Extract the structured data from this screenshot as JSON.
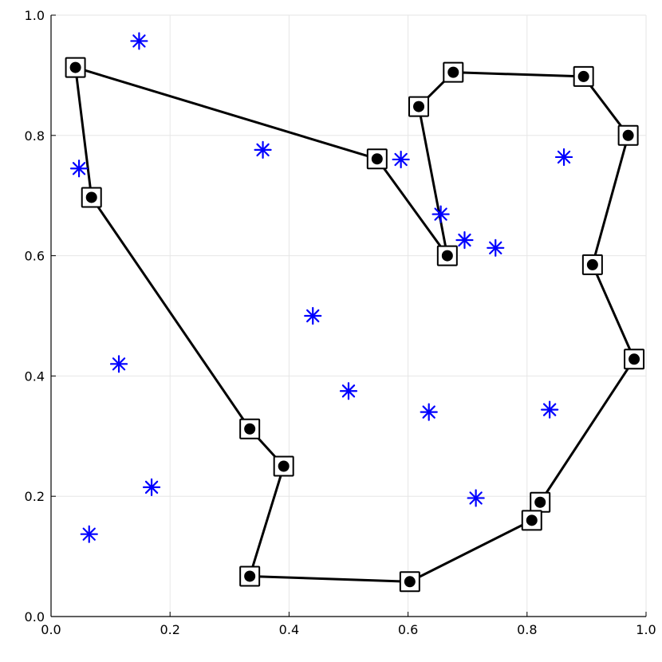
{
  "chart_data": {
    "type": "scatter",
    "title": "",
    "xlabel": "",
    "ylabel": "",
    "xlim": [
      0.0,
      1.0
    ],
    "ylim": [
      0.0,
      1.0
    ],
    "grid": true,
    "legend": "none",
    "x_ticks": [
      {
        "value": 0.0,
        "label": "0.0"
      },
      {
        "value": 0.2,
        "label": "0.2"
      },
      {
        "value": 0.4,
        "label": "0.4"
      },
      {
        "value": 0.6,
        "label": "0.6"
      },
      {
        "value": 0.8,
        "label": "0.8"
      },
      {
        "value": 1.0,
        "label": "1.0"
      }
    ],
    "y_ticks": [
      {
        "value": 0.0,
        "label": "0.0"
      },
      {
        "value": 0.2,
        "label": "0.2"
      },
      {
        "value": 0.4,
        "label": "0.4"
      },
      {
        "value": 0.6,
        "label": "0.6"
      },
      {
        "value": 0.8,
        "label": "0.8"
      },
      {
        "value": 1.0,
        "label": "1.0"
      }
    ],
    "series": [
      {
        "marker": "asterisk",
        "color": "#0000ff",
        "points": [
          {
            "x": 0.148,
            "y": 0.957
          },
          {
            "x": 0.047,
            "y": 0.745
          },
          {
            "x": 0.356,
            "y": 0.776
          },
          {
            "x": 0.588,
            "y": 0.76
          },
          {
            "x": 0.862,
            "y": 0.764
          },
          {
            "x": 0.655,
            "y": 0.669
          },
          {
            "x": 0.695,
            "y": 0.626
          },
          {
            "x": 0.747,
            "y": 0.613
          },
          {
            "x": 0.44,
            "y": 0.5
          },
          {
            "x": 0.114,
            "y": 0.42
          },
          {
            "x": 0.5,
            "y": 0.375
          },
          {
            "x": 0.635,
            "y": 0.34
          },
          {
            "x": 0.838,
            "y": 0.344
          },
          {
            "x": 0.169,
            "y": 0.215
          },
          {
            "x": 0.714,
            "y": 0.197
          },
          {
            "x": 0.064,
            "y": 0.137
          }
        ]
      },
      {
        "marker": "circle",
        "color": "#000000",
        "points": [
          {
            "x": 0.041,
            "y": 0.913
          },
          {
            "x": 0.548,
            "y": 0.761
          },
          {
            "x": 0.666,
            "y": 0.6
          },
          {
            "x": 0.618,
            "y": 0.848
          },
          {
            "x": 0.676,
            "y": 0.905
          },
          {
            "x": 0.895,
            "y": 0.898
          },
          {
            "x": 0.97,
            "y": 0.8
          },
          {
            "x": 0.91,
            "y": 0.585
          },
          {
            "x": 0.98,
            "y": 0.428
          },
          {
            "x": 0.822,
            "y": 0.19
          },
          {
            "x": 0.808,
            "y": 0.16
          },
          {
            "x": 0.603,
            "y": 0.058
          },
          {
            "x": 0.334,
            "y": 0.067
          },
          {
            "x": 0.391,
            "y": 0.25
          },
          {
            "x": 0.334,
            "y": 0.312
          },
          {
            "x": 0.068,
            "y": 0.697
          }
        ]
      },
      {
        "marker": "square",
        "color": "#000000",
        "points": [
          {
            "x": 0.041,
            "y": 0.913
          },
          {
            "x": 0.548,
            "y": 0.761
          },
          {
            "x": 0.666,
            "y": 0.6
          },
          {
            "x": 0.618,
            "y": 0.848
          },
          {
            "x": 0.676,
            "y": 0.905
          },
          {
            "x": 0.895,
            "y": 0.898
          },
          {
            "x": 0.97,
            "y": 0.8
          },
          {
            "x": 0.91,
            "y": 0.585
          },
          {
            "x": 0.98,
            "y": 0.428
          },
          {
            "x": 0.822,
            "y": 0.19
          },
          {
            "x": 0.808,
            "y": 0.16
          },
          {
            "x": 0.603,
            "y": 0.058
          },
          {
            "x": 0.334,
            "y": 0.067
          },
          {
            "x": 0.391,
            "y": 0.25
          },
          {
            "x": 0.334,
            "y": 0.312
          },
          {
            "x": 0.068,
            "y": 0.697
          }
        ]
      },
      {
        "marker": "line",
        "color": "#000000",
        "closed": false,
        "points": [
          {
            "x": 0.041,
            "y": 0.913
          },
          {
            "x": 0.548,
            "y": 0.761
          },
          {
            "x": 0.666,
            "y": 0.6
          },
          {
            "x": 0.618,
            "y": 0.848
          },
          {
            "x": 0.676,
            "y": 0.905
          },
          {
            "x": 0.895,
            "y": 0.898
          },
          {
            "x": 0.97,
            "y": 0.8
          },
          {
            "x": 0.91,
            "y": 0.585
          },
          {
            "x": 0.98,
            "y": 0.428
          },
          {
            "x": 0.822,
            "y": 0.19
          },
          {
            "x": 0.808,
            "y": 0.16
          },
          {
            "x": 0.603,
            "y": 0.058
          },
          {
            "x": 0.334,
            "y": 0.067
          },
          {
            "x": 0.391,
            "y": 0.25
          },
          {
            "x": 0.334,
            "y": 0.312
          },
          {
            "x": 0.068,
            "y": 0.697
          },
          {
            "x": 0.041,
            "y": 0.913
          }
        ]
      }
    ]
  }
}
